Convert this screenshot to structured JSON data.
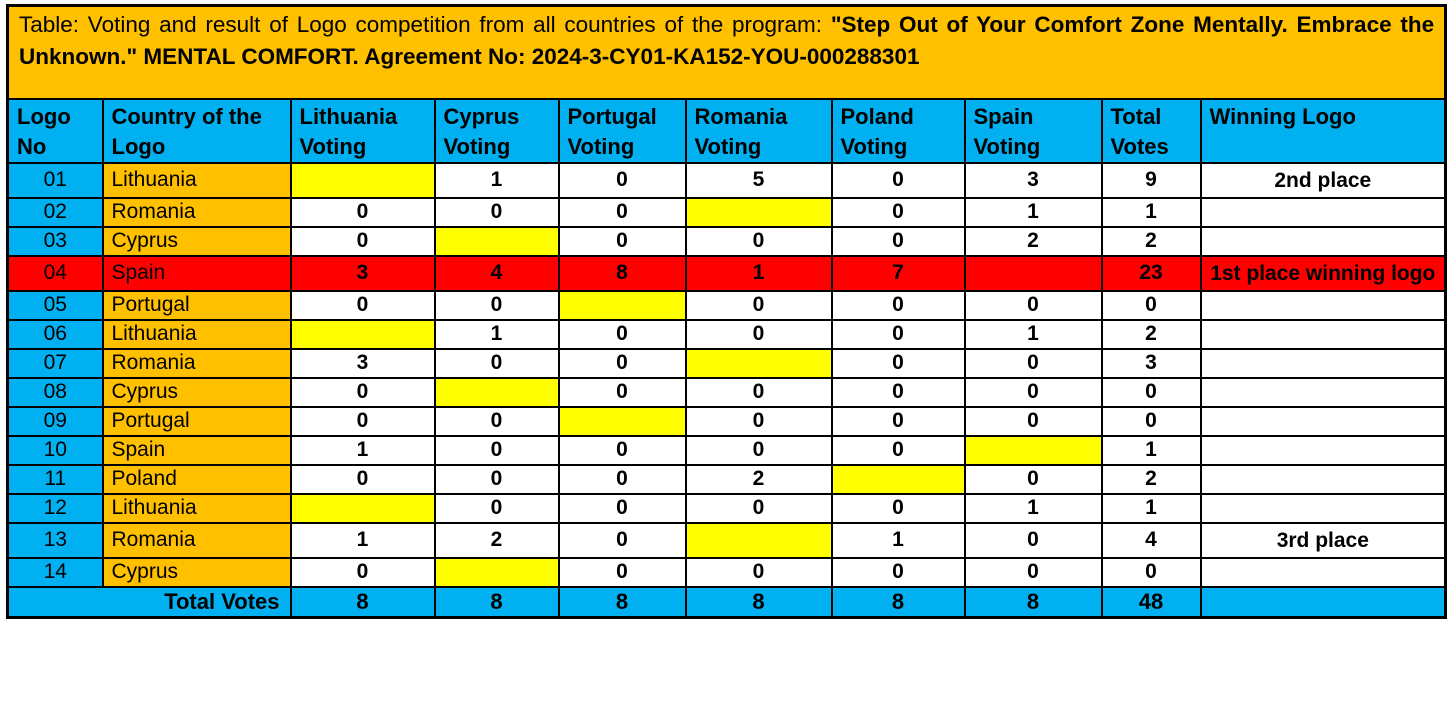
{
  "title": {
    "prefix": "Table: Voting and result of Logo competition from all countries of the program: ",
    "emphasis": "\"Step Out of Your Comfort Zone Mentally. Embrace the Unknown.\" MENTAL COMFORT. Agreement No: 2024-3-CY01-KA152-YOU-000288301"
  },
  "columns": [
    "Logo No",
    "Country of the Logo",
    "Lithuania Voting",
    "Cyprus Voting",
    "Portugal Voting",
    "Romania Voting",
    "Poland Voting",
    "Spain Voting",
    "Total Votes",
    "Winning Logo"
  ],
  "voting_countries": [
    "Lithuania",
    "Cyprus",
    "Portugal",
    "Romania",
    "Poland",
    "Spain"
  ],
  "rows": [
    {
      "logo_no": "01",
      "country": "Lithuania",
      "votes": [
        "",
        "1",
        "0",
        "5",
        "0",
        "3"
      ],
      "self_vote_index": 0,
      "total": "9",
      "winning": "2nd place",
      "row_style": "normal"
    },
    {
      "logo_no": "02",
      "country": "Romania",
      "votes": [
        "0",
        "0",
        "0",
        "",
        "0",
        "1"
      ],
      "self_vote_index": 3,
      "total": "1",
      "winning": "",
      "row_style": "normal"
    },
    {
      "logo_no": "03",
      "country": "Cyprus",
      "votes": [
        "0",
        "",
        "0",
        "0",
        "0",
        "2"
      ],
      "self_vote_index": 1,
      "total": "2",
      "winning": "",
      "row_style": "normal"
    },
    {
      "logo_no": "04",
      "country": "Spain",
      "votes": [
        "3",
        "4",
        "8",
        "1",
        "7",
        ""
      ],
      "self_vote_index": 5,
      "total": "23",
      "winning": "1st place winning logo",
      "row_style": "winner"
    },
    {
      "logo_no": "05",
      "country": "Portugal",
      "votes": [
        "0",
        "0",
        "",
        "0",
        "0",
        "0"
      ],
      "self_vote_index": 2,
      "total": "0",
      "winning": "",
      "row_style": "normal"
    },
    {
      "logo_no": "06",
      "country": "Lithuania",
      "votes": [
        "",
        "1",
        "0",
        "0",
        "0",
        "1"
      ],
      "self_vote_index": 0,
      "total": "2",
      "winning": "",
      "row_style": "normal"
    },
    {
      "logo_no": "07",
      "country": "Romania",
      "votes": [
        "3",
        "0",
        "0",
        "",
        "0",
        "0"
      ],
      "self_vote_index": 3,
      "total": "3",
      "winning": "",
      "row_style": "normal"
    },
    {
      "logo_no": "08",
      "country": "Cyprus",
      "votes": [
        "0",
        "",
        "0",
        "0",
        "0",
        "0"
      ],
      "self_vote_index": 1,
      "total": "0",
      "winning": "",
      "row_style": "normal"
    },
    {
      "logo_no": "09",
      "country": "Portugal",
      "votes": [
        "0",
        "0",
        "",
        "0",
        "0",
        "0"
      ],
      "self_vote_index": 2,
      "total": "0",
      "winning": "",
      "row_style": "normal"
    },
    {
      "logo_no": "10",
      "country": "Spain",
      "votes": [
        "1",
        "0",
        "0",
        "0",
        "0",
        ""
      ],
      "self_vote_index": 5,
      "total": "1",
      "winning": "",
      "row_style": "normal"
    },
    {
      "logo_no": "11",
      "country": "Poland",
      "votes": [
        "0",
        "0",
        "0",
        "2",
        "",
        "0"
      ],
      "self_vote_index": 4,
      "total": "2",
      "winning": "",
      "row_style": "normal"
    },
    {
      "logo_no": "12",
      "country": "Lithuania",
      "votes": [
        "",
        "0",
        "0",
        "0",
        "0",
        "1"
      ],
      "self_vote_index": 0,
      "total": "1",
      "winning": "",
      "row_style": "normal"
    },
    {
      "logo_no": "13",
      "country": "Romania",
      "votes": [
        "1",
        "2",
        "0",
        "",
        "1",
        "0"
      ],
      "self_vote_index": 3,
      "total": "4",
      "winning": "3rd place",
      "row_style": "normal"
    },
    {
      "logo_no": "14",
      "country": "Cyprus",
      "votes": [
        "0",
        "",
        "0",
        "0",
        "0",
        "0"
      ],
      "self_vote_index": 1,
      "total": "0",
      "winning": "",
      "row_style": "normal"
    }
  ],
  "footer": {
    "label": "Total Votes",
    "values": [
      "8",
      "8",
      "8",
      "8",
      "8",
      "8",
      "48"
    ],
    "winning_cell": ""
  },
  "colors": {
    "title_bg": "#FFC000",
    "header_bg": "#00B0F0",
    "country_bg": "#FFC000",
    "logo_no_bg": "#00B0F0",
    "self_vote_highlight": "#FFFF00",
    "winner_row_bg": "#FF0000",
    "cell_bg": "#FFFFFF",
    "border": "#000000"
  }
}
